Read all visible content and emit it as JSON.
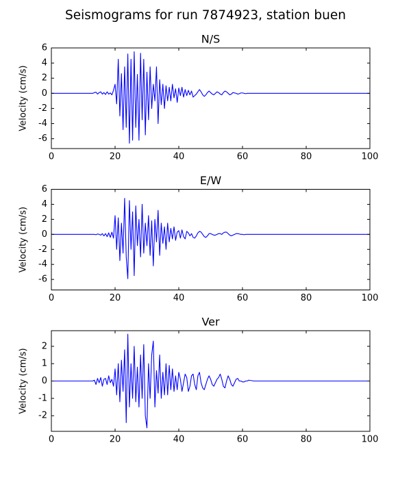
{
  "title": "Seismograms for run 7874923, station buen",
  "chart_data": [
    {
      "type": "line",
      "title": "N/S",
      "y_label": "Velocity (cm/s)",
      "x": [
        0,
        10,
        12,
        13,
        13.5,
        14,
        14.5,
        15,
        15.5,
        16,
        16.5,
        17,
        17.5,
        18,
        18.5,
        19,
        19.5,
        20,
        20.5,
        21,
        21.5,
        22,
        22.5,
        23,
        23.5,
        24,
        24.5,
        25,
        25.5,
        26,
        26.5,
        27,
        27.5,
        28,
        28.5,
        29,
        29.5,
        30,
        30.5,
        31,
        31.5,
        32,
        32.5,
        33,
        33.5,
        34,
        34.5,
        35,
        35.5,
        36,
        36.5,
        37,
        37.5,
        38,
        38.5,
        39,
        39.5,
        40,
        40.5,
        41,
        41.5,
        42,
        42.5,
        43,
        43.5,
        44,
        44.5,
        45,
        45.5,
        46,
        46.5,
        47,
        47.5,
        48,
        48.5,
        49,
        49.5,
        50,
        50.5,
        51,
        51.5,
        52,
        52.5,
        53,
        53.5,
        54,
        54.5,
        55,
        55.5,
        56,
        56.5,
        57,
        57.5,
        58,
        58.5,
        59,
        59.5,
        60,
        60.5,
        61,
        61.5,
        62,
        62.5,
        63,
        63.5,
        64,
        70,
        80,
        90,
        100
      ],
      "series": [
        {
          "color": "#0000ff",
          "values": [
            0,
            0,
            0,
            0,
            0.1,
            0.15,
            -0.1,
            0.1,
            0.2,
            -0.1,
            0.1,
            -0.15,
            0.2,
            -0.1,
            0.05,
            -0.2,
            0.4,
            1.2,
            -1.4,
            4.5,
            -3.0,
            2.6,
            -4.8,
            3.5,
            -4.5,
            5.2,
            -6.6,
            4.5,
            -6.2,
            5.5,
            -4.5,
            2.5,
            -6.2,
            5.3,
            -3.5,
            4.5,
            -5.5,
            2.8,
            -3.5,
            3.5,
            -2.0,
            1.2,
            -1.0,
            3.5,
            -4.0,
            1.8,
            -1.5,
            1.2,
            -2.0,
            1.0,
            -1.0,
            0.8,
            -1.0,
            1.2,
            -0.6,
            0.6,
            -1.2,
            0.7,
            -0.3,
            0.8,
            -0.5,
            0.5,
            -0.3,
            0.4,
            -0.2,
            0.3,
            -0.5,
            -0.3,
            -0.1,
            0.2,
            0.5,
            0.2,
            -0.2,
            -0.4,
            -0.2,
            0.1,
            0.3,
            0.1,
            -0.1,
            -0.2,
            0,
            0.2,
            0.1,
            -0.1,
            -0.2,
            0.1,
            0.3,
            0.2,
            0,
            -0.2,
            -0.1,
            0.1,
            0.05,
            0,
            -0.1,
            -0.05,
            0.05,
            0.05,
            0,
            -0.05,
            0,
            0,
            0,
            0,
            0,
            0,
            0,
            0,
            0,
            0
          ]
        }
      ],
      "xlim": [
        0,
        100
      ],
      "xticks": [
        0,
        20,
        40,
        60,
        80,
        100
      ],
      "ylim": [
        -7.3,
        6
      ],
      "yticks": [
        -6,
        -4,
        -2,
        0,
        2,
        4,
        6
      ]
    },
    {
      "type": "line",
      "title": "E/W",
      "y_label": "Velocity (cm/s)",
      "x": [
        0,
        10,
        12,
        13,
        13.5,
        14,
        14.5,
        15,
        15.5,
        16,
        16.5,
        17,
        17.5,
        18,
        18.5,
        19,
        19.5,
        20,
        20.5,
        21,
        21.5,
        22,
        22.5,
        23,
        23.5,
        24,
        24.5,
        25,
        25.5,
        26,
        26.5,
        27,
        27.5,
        28,
        28.5,
        29,
        29.5,
        30,
        30.5,
        31,
        31.5,
        32,
        32.5,
        33,
        33.5,
        34,
        34.5,
        35,
        35.5,
        36,
        36.5,
        37,
        37.5,
        38,
        38.5,
        39,
        39.5,
        40,
        40.5,
        41,
        41.5,
        42,
        42.5,
        43,
        43.5,
        44,
        44.5,
        45,
        45.5,
        46,
        46.5,
        47,
        47.5,
        48,
        48.5,
        49,
        49.5,
        50,
        50.5,
        51,
        51.5,
        52,
        52.5,
        53,
        53.5,
        54,
        54.5,
        55,
        55.5,
        56,
        56.5,
        57,
        57.5,
        58,
        58.5,
        59,
        59.5,
        60,
        60.5,
        61,
        61.5,
        62,
        62.5,
        63,
        63.5,
        64,
        70,
        80,
        90,
        100
      ],
      "series": [
        {
          "color": "#0000ff",
          "values": [
            0,
            0,
            0,
            0,
            0,
            -0.05,
            0.05,
            0,
            -0.1,
            0.1,
            -0.2,
            0.1,
            -0.3,
            0.2,
            -0.4,
            0.3,
            -0.5,
            2.5,
            -2.0,
            2.2,
            -3.5,
            1.5,
            -2.5,
            4.8,
            -3.0,
            -5.9,
            4.5,
            -2.0,
            3.0,
            -5.5,
            3.8,
            -1.5,
            2.0,
            -3.0,
            4.0,
            -2.5,
            1.5,
            -1.5,
            2.5,
            -2.8,
            1.8,
            -4.2,
            2.0,
            -1.0,
            3.2,
            -2.8,
            1.5,
            -1.2,
            1.0,
            -2.0,
            1.5,
            -1.0,
            0.8,
            -0.6,
            1.0,
            -0.8,
            0.3,
            0.5,
            -0.5,
            0.6,
            -0.3,
            -0.6,
            0.4,
            0.2,
            -0.2,
            0.1,
            -0.4,
            -0.5,
            -0.2,
            0.2,
            0.4,
            0.3,
            0,
            -0.3,
            -0.4,
            -0.2,
            0.1,
            0.1,
            0,
            -0.1,
            -0.1,
            0,
            0.1,
            0.1,
            0,
            0.2,
            0.3,
            0.3,
            0.1,
            -0.1,
            -0.2,
            -0.1,
            0,
            0.1,
            0.1,
            0.05,
            0,
            0,
            -0.05,
            0,
            0,
            0,
            0,
            0,
            0,
            0,
            0,
            0,
            0,
            0
          ]
        }
      ],
      "xlim": [
        0,
        100
      ],
      "xticks": [
        0,
        20,
        40,
        60,
        80,
        100
      ],
      "ylim": [
        -7.4,
        6
      ],
      "yticks": [
        -6,
        -4,
        -2,
        0,
        2,
        4,
        6
      ]
    },
    {
      "type": "line",
      "title": "Ver",
      "y_label": "Velocity (cm/s)",
      "x": [
        0,
        10,
        12,
        13,
        13.5,
        14,
        14.5,
        15,
        15.5,
        16,
        16.5,
        17,
        17.5,
        18,
        18.5,
        19,
        19.5,
        20,
        20.5,
        21,
        21.5,
        22,
        22.5,
        23,
        23.5,
        24,
        24.5,
        25,
        25.5,
        26,
        26.5,
        27,
        27.5,
        28,
        28.5,
        29,
        29.5,
        30,
        30.5,
        31,
        31.5,
        32,
        32.5,
        33,
        33.5,
        34,
        34.5,
        35,
        35.5,
        36,
        36.5,
        37,
        37.5,
        38,
        38.5,
        39,
        39.5,
        40,
        40.5,
        41,
        41.5,
        42,
        42.5,
        43,
        43.5,
        44,
        44.5,
        45,
        45.5,
        46,
        46.5,
        47,
        47.5,
        48,
        48.5,
        49,
        49.5,
        50,
        50.5,
        51,
        51.5,
        52,
        52.5,
        53,
        53.5,
        54,
        54.5,
        55,
        55.5,
        56,
        56.5,
        57,
        57.5,
        58,
        58.5,
        59,
        59.5,
        60,
        60.5,
        61,
        61.5,
        62,
        62.5,
        63,
        63.5,
        64,
        70,
        80,
        90,
        100
      ],
      "series": [
        {
          "color": "#0000ff",
          "values": [
            0,
            0,
            0,
            0,
            0.05,
            -0.2,
            0.15,
            -0.1,
            0.2,
            -0.3,
            0.1,
            0.15,
            -0.2,
            0.3,
            -0.1,
            0.1,
            -0.3,
            0.7,
            -0.8,
            1.0,
            -1.2,
            1.2,
            -0.6,
            1.8,
            -2.4,
            2.7,
            -1.5,
            1.0,
            -1.0,
            2.0,
            -1.2,
            0.8,
            -1.5,
            1.5,
            -1.0,
            2.1,
            -2.0,
            -2.7,
            1.0,
            -1.0,
            1.5,
            2.3,
            -1.5,
            0.6,
            -0.7,
            1.5,
            -1.0,
            0.5,
            -0.8,
            1.0,
            -0.8,
            0.9,
            -0.5,
            0.7,
            -0.6,
            0.3,
            -0.5,
            0.5,
            0.1,
            -0.6,
            -0.1,
            0.4,
            0.2,
            -0.6,
            -0.3,
            0.3,
            0.4,
            -0.2,
            -0.5,
            0.3,
            0.5,
            -0.1,
            -0.4,
            -0.5,
            -0.2,
            0.1,
            0.3,
            0.1,
            -0.2,
            -0.3,
            -0.1,
            0.1,
            0.2,
            0.4,
            0.1,
            -0.3,
            -0.4,
            0,
            0.3,
            0.1,
            -0.2,
            -0.3,
            -0.1,
            0.1,
            0.15,
            0,
            0,
            -0.05,
            -0.05,
            0,
            0,
            0.05,
            0.03,
            0.02,
            0,
            0,
            0,
            0,
            0,
            0
          ]
        }
      ],
      "xlim": [
        0,
        100
      ],
      "xticks": [
        0,
        20,
        40,
        60,
        80,
        100
      ],
      "ylim": [
        -2.9,
        2.9
      ],
      "yticks": [
        -2,
        -1,
        0,
        1,
        2
      ]
    }
  ]
}
